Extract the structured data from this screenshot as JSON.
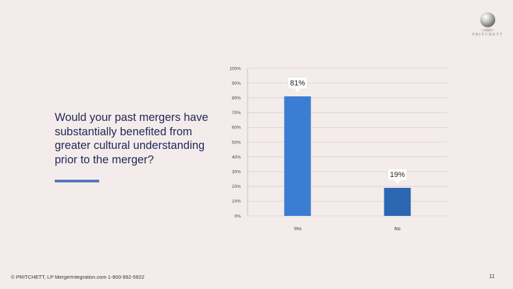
{
  "slide": {
    "question": "Would your past mergers have substantially benefited from greater cultural understanding prior to the merger?",
    "footer": "© PRITCHETT, LP MergerIntegration.com 1-800-992-5922",
    "page_number": "11",
    "logo_text": "PRITCHETT",
    "accent_color": "#4f79c0"
  },
  "chart_data": {
    "type": "bar",
    "categories": [
      "Yes",
      "No"
    ],
    "values": [
      81,
      19
    ],
    "data_labels": [
      "81%",
      "19%"
    ],
    "y_ticks": [
      "0%",
      "10%",
      "20%",
      "30%",
      "40%",
      "50%",
      "60%",
      "70%",
      "80%",
      "90%",
      "100%"
    ],
    "ylim": [
      0,
      100
    ],
    "grid": true,
    "colors": [
      "#3b7dd3",
      "#2b66b3"
    ],
    "title": "",
    "xlabel": "",
    "ylabel": ""
  }
}
